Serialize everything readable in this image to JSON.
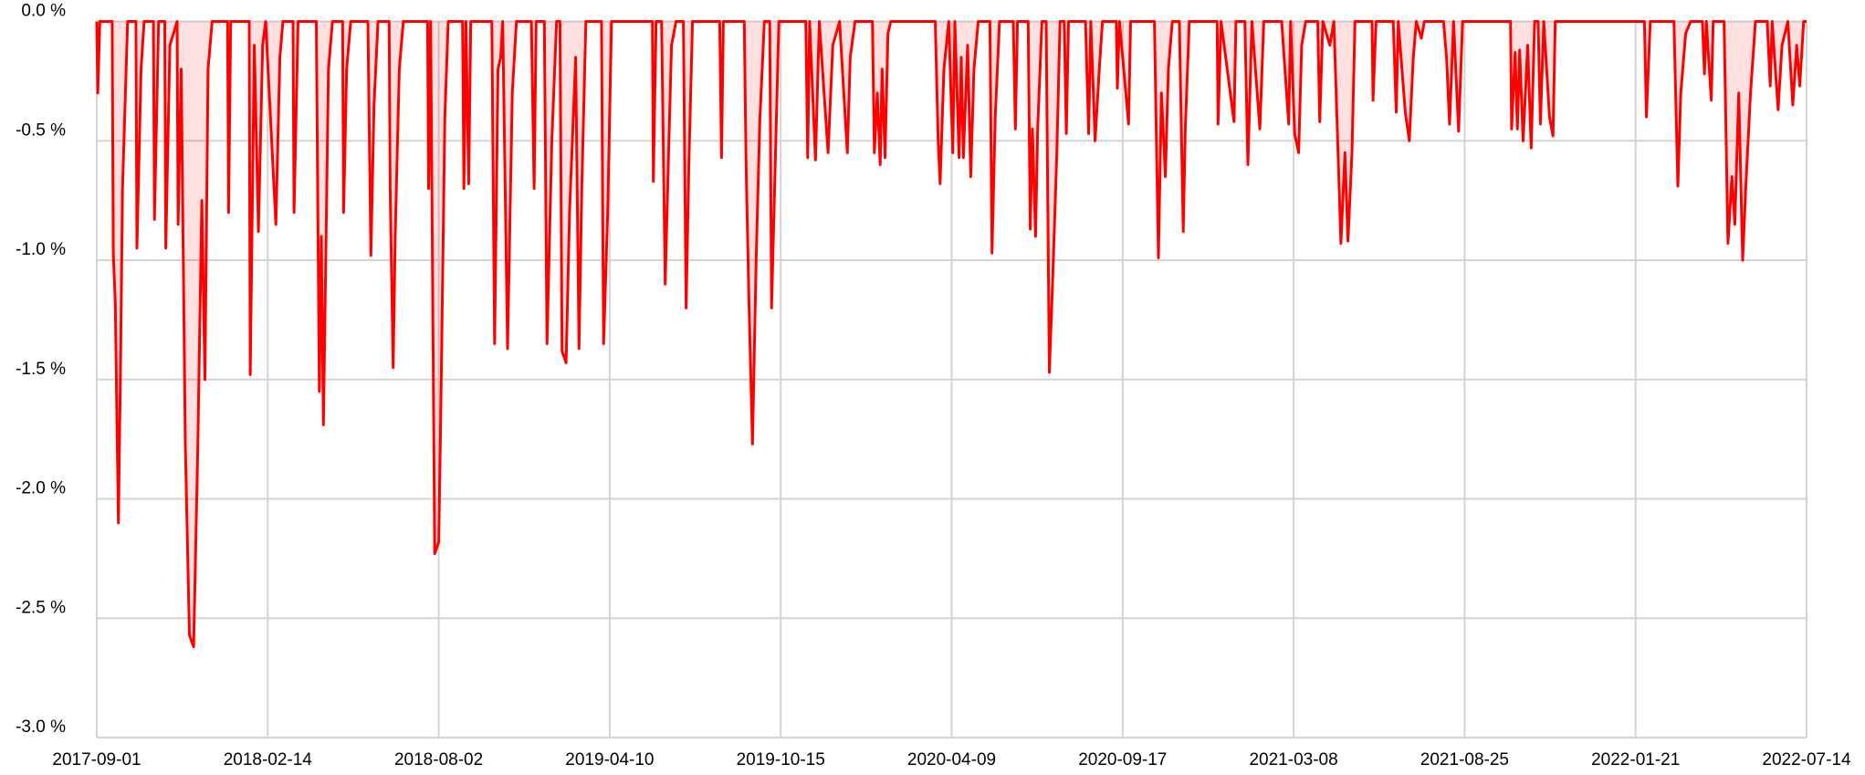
{
  "chart_data": {
    "type": "area",
    "color": "#ff0000",
    "fill": "rgba(255,0,0,0.12)",
    "grid": true,
    "xlim": [
      "2017-09-01",
      "2022-07-14"
    ],
    "xticks": [
      "2017-09-01",
      "2018-02-14",
      "2018-08-02",
      "2019-04-10",
      "2019-10-15",
      "2020-04-09",
      "2020-09-17",
      "2021-03-08",
      "2021-08-25",
      "2022-01-21",
      "2022-07-14"
    ],
    "ylim": [
      -3.0,
      0.0
    ],
    "yticks": [
      {
        "value": 0.0,
        "label": "0.0 %"
      },
      {
        "value": -0.5,
        "label": "-0.5 %"
      },
      {
        "value": -1.0,
        "label": "-1.0 %"
      },
      {
        "value": -1.5,
        "label": "-1.5 %"
      },
      {
        "value": -2.0,
        "label": "-2.0 %"
      },
      {
        "value": -2.5,
        "label": "-2.5 %"
      },
      {
        "value": -3.0,
        "label": "-3.0 %"
      }
    ],
    "x": [
      "2017-09-01",
      "2017-09-02",
      "2017-09-04",
      "2017-09-16",
      "2017-09-17",
      "2017-09-19",
      "2017-09-22",
      "2017-09-24",
      "2017-09-26",
      "2017-10-01",
      "2017-10-09",
      "2017-10-10",
      "2017-10-14",
      "2017-10-17",
      "2017-10-26",
      "2017-10-27",
      "2017-10-31",
      "2017-11-06",
      "2017-11-07",
      "2017-11-11",
      "2017-11-18",
      "2017-11-19",
      "2017-11-22",
      "2017-11-26",
      "2017-11-30",
      "2017-12-04",
      "2017-12-08",
      "2017-12-12",
      "2017-12-15",
      "2017-12-18",
      "2017-12-22",
      "2018-01-06",
      "2018-01-07",
      "2018-01-09",
      "2018-01-27",
      "2018-01-28",
      "2018-02-01",
      "2018-02-05",
      "2018-02-09",
      "2018-02-12",
      "2018-02-22",
      "2018-02-26",
      "2018-03-01",
      "2018-03-11",
      "2018-03-12",
      "2018-03-16",
      "2018-04-03",
      "2018-04-06",
      "2018-04-08",
      "2018-04-10",
      "2018-04-15",
      "2018-04-19",
      "2018-04-29",
      "2018-04-30",
      "2018-05-03",
      "2018-05-07",
      "2018-05-24",
      "2018-05-27",
      "2018-05-30",
      "2018-06-03",
      "2018-06-14",
      "2018-06-15",
      "2018-06-18",
      "2018-06-20",
      "2018-06-24",
      "2018-06-28",
      "2018-07-22",
      "2018-07-23",
      "2018-07-25",
      "2018-07-29",
      "2018-08-02",
      "2018-08-05",
      "2018-08-11",
      "2018-08-16",
      "2018-09-06",
      "2018-09-08",
      "2018-09-11",
      "2018-09-15",
      "2018-09-18",
      "2018-10-19",
      "2018-10-23",
      "2018-10-28",
      "2018-11-01",
      "2018-11-04",
      "2018-11-11",
      "2018-11-18",
      "2018-11-24",
      "2018-12-16",
      "2018-12-20",
      "2018-12-23",
      "2019-01-04",
      "2019-01-08",
      "2019-01-15",
      "2019-01-22",
      "2019-01-27",
      "2019-01-30",
      "2019-02-05",
      "2019-02-10",
      "2019-02-19",
      "2019-02-24",
      "2019-02-28",
      "2019-03-06",
      "2019-03-29",
      "2019-04-01",
      "2019-04-07",
      "2019-04-12",
      "2019-05-27",
      "2019-05-28",
      "2019-05-31",
      "2019-06-06",
      "2019-06-10",
      "2019-06-13",
      "2019-06-17",
      "2019-06-22",
      "2019-06-30",
      "2019-07-03",
      "2019-07-06",
      "2019-07-10",
      "2019-08-09",
      "2019-08-11",
      "2019-08-13",
      "2019-09-05",
      "2019-09-07",
      "2019-09-10",
      "2019-09-14",
      "2019-09-18",
      "2019-09-22",
      "2019-09-27",
      "2019-10-03",
      "2019-10-05",
      "2019-10-09",
      "2019-10-13",
      "2019-11-10",
      "2019-11-12",
      "2019-11-14",
      "2019-11-20",
      "2019-11-24",
      "2019-12-03",
      "2019-12-08",
      "2019-12-15",
      "2019-12-23",
      "2019-12-26",
      "2019-12-31",
      "2020-01-18",
      "2020-01-20",
      "2020-01-23",
      "2020-01-26",
      "2020-01-28",
      "2020-01-31",
      "2020-02-03",
      "2020-02-06",
      "2020-03-23",
      "2020-03-26",
      "2020-03-28",
      "2020-04-01",
      "2020-04-06",
      "2020-04-10",
      "2020-04-12",
      "2020-04-16",
      "2020-04-18",
      "2020-04-20",
      "2020-04-24",
      "2020-04-27",
      "2020-04-30",
      "2020-05-04",
      "2020-05-15",
      "2020-05-17",
      "2020-05-20",
      "2020-05-24",
      "2020-06-06",
      "2020-06-08",
      "2020-06-10",
      "2020-06-20",
      "2020-06-22",
      "2020-06-24",
      "2020-06-27",
      "2020-06-29",
      "2020-07-03",
      "2020-07-07",
      "2020-07-10",
      "2020-07-13",
      "2020-07-17",
      "2020-07-20",
      "2020-07-24",
      "2020-07-26",
      "2020-07-28",
      "2020-08-13",
      "2020-08-16",
      "2020-08-18",
      "2020-08-22",
      "2020-08-26",
      "2020-08-29",
      "2020-09-11",
      "2020-09-12",
      "2020-09-14",
      "2020-09-23",
      "2020-09-25",
      "2020-10-19",
      "2020-10-23",
      "2020-10-26",
      "2020-10-30",
      "2020-11-02",
      "2020-11-06",
      "2020-11-13",
      "2020-11-17",
      "2020-11-19",
      "2020-11-23",
      "2020-12-21",
      "2020-12-22",
      "2020-12-25",
      "2021-01-07",
      "2021-01-09",
      "2021-01-18",
      "2021-01-21",
      "2021-01-25",
      "2021-02-02",
      "2021-02-06",
      "2021-02-24",
      "2021-03-03",
      "2021-03-05",
      "2021-03-09",
      "2021-03-13",
      "2021-03-16",
      "2021-03-20",
      "2021-04-01",
      "2021-04-03",
      "2021-04-06",
      "2021-04-13",
      "2021-04-17",
      "2021-04-24",
      "2021-04-28",
      "2021-05-01",
      "2021-05-05",
      "2021-05-08",
      "2021-05-25",
      "2021-05-26",
      "2021-05-29",
      "2021-06-15",
      "2021-06-18",
      "2021-06-20",
      "2021-06-27",
      "2021-07-01",
      "2021-07-05",
      "2021-07-08",
      "2021-07-13",
      "2021-07-16",
      "2021-08-04",
      "2021-08-07",
      "2021-08-10",
      "2021-08-14",
      "2021-08-19",
      "2021-08-23",
      "2021-10-04",
      "2021-10-05",
      "2021-10-08",
      "2021-10-10",
      "2021-10-12",
      "2021-10-15",
      "2021-10-19",
      "2021-10-22",
      "2021-10-25",
      "2021-10-28",
      "2021-10-30",
      "2021-11-02",
      "2021-11-07",
      "2021-11-10",
      "2021-11-12",
      "2022-01-30",
      "2022-02-01",
      "2022-02-05",
      "2022-03-01",
      "2022-03-05",
      "2022-03-08",
      "2022-03-13",
      "2022-03-18",
      "2022-03-30",
      "2022-04-01",
      "2022-04-03",
      "2022-04-08",
      "2022-04-10",
      "2022-04-21",
      "2022-04-25",
      "2022-04-29",
      "2022-05-02",
      "2022-05-06",
      "2022-05-10",
      "2022-05-13",
      "2022-05-18",
      "2022-05-23",
      "2022-06-04",
      "2022-06-07",
      "2022-06-09",
      "2022-06-15",
      "2022-06-19",
      "2022-06-25",
      "2022-06-30",
      "2022-07-04",
      "2022-07-07",
      "2022-07-11",
      "2022-07-14"
    ],
    "values": [
      0,
      -0.3,
      0,
      0,
      -0.97,
      -1.18,
      -2.1,
      -1.45,
      -0.7,
      0,
      0,
      -0.95,
      -0.2,
      0,
      0,
      -0.83,
      0,
      0,
      -0.95,
      -0.1,
      0,
      -0.85,
      -0.2,
      -1.77,
      -2.57,
      -2.62,
      -1.8,
      -0.75,
      -1.5,
      -0.2,
      0,
      0,
      -0.8,
      0,
      0,
      -1.48,
      -0.1,
      -0.88,
      -0.1,
      0,
      -0.85,
      -0.15,
      0,
      0,
      -0.8,
      0,
      0,
      -1.55,
      -0.9,
      -1.69,
      -0.2,
      0,
      0,
      -0.8,
      -0.2,
      0,
      0,
      -0.98,
      -0.35,
      0,
      0,
      -0.7,
      -1.45,
      -0.9,
      -0.2,
      0,
      0,
      -0.7,
      0,
      -2.23,
      -2.18,
      -1.65,
      -0.4,
      0,
      0,
      -0.7,
      0,
      -0.68,
      0,
      0,
      -1.35,
      -0.2,
      -0.15,
      0,
      -1.37,
      -0.3,
      0,
      0,
      -0.7,
      0,
      0,
      -1.35,
      -0.5,
      0,
      0,
      -1.38,
      -1.43,
      -0.8,
      -0.15,
      -1.37,
      -0.7,
      0,
      0,
      -1.35,
      -0.8,
      0,
      0,
      -0.67,
      0,
      0,
      -1.1,
      -0.65,
      -0.1,
      0,
      0,
      -1.2,
      -0.6,
      0,
      0,
      -0.57,
      0,
      0,
      -0.6,
      -1.15,
      -1.77,
      -1.0,
      -0.42,
      0,
      0,
      -1.2,
      -0.6,
      0,
      0,
      -0.57,
      0,
      -0.58,
      0,
      -0.55,
      -0.1,
      0,
      -0.55,
      -0.15,
      0,
      0,
      -0.55,
      -0.3,
      -0.6,
      -0.2,
      -0.57,
      -0.05,
      0,
      0,
      -0.5,
      -0.68,
      -0.2,
      0,
      -0.55,
      0,
      -0.57,
      -0.15,
      -0.57,
      -0.1,
      -0.65,
      -0.2,
      0,
      0,
      -0.97,
      -0.4,
      0,
      0,
      -0.45,
      0,
      0,
      -0.87,
      -0.45,
      -0.9,
      -0.45,
      0,
      0,
      -1.47,
      -1.1,
      -0.55,
      0,
      0,
      -0.47,
      0,
      0,
      -0.47,
      0,
      -0.5,
      -0.2,
      0,
      0,
      -0.28,
      0,
      -0.43,
      0,
      0,
      -0.99,
      -0.3,
      -0.65,
      -0.2,
      0,
      0,
      -0.88,
      -0.45,
      0,
      0,
      -0.43,
      0,
      -0.42,
      0,
      0,
      -0.6,
      0,
      -0.45,
      0,
      0,
      -0.43,
      0,
      -0.47,
      -0.55,
      -0.1,
      0,
      0,
      -0.42,
      0,
      -0.1,
      0,
      -0.93,
      -0.55,
      -0.92,
      -0.55,
      0,
      0,
      -0.33,
      0,
      0,
      -0.38,
      0,
      -0.38,
      -0.5,
      -0.15,
      0,
      -0.07,
      0,
      0,
      -0.15,
      -0.43,
      0,
      -0.46,
      0,
      0,
      -0.45,
      -0.13,
      -0.45,
      -0.12,
      -0.5,
      -0.1,
      -0.53,
      0,
      0,
      -0.43,
      0,
      -0.4,
      -0.48,
      0,
      0,
      -0.4,
      0,
      0,
      -0.69,
      -0.3,
      -0.05,
      0,
      0,
      -0.22,
      0,
      -0.33,
      0,
      0,
      -0.93,
      -0.65,
      -0.85,
      -0.3,
      -1.0,
      -0.7,
      -0.3,
      0,
      0,
      -0.27,
      0,
      -0.37,
      -0.1,
      0,
      -0.35,
      -0.1,
      -0.27,
      0,
      0
    ]
  }
}
